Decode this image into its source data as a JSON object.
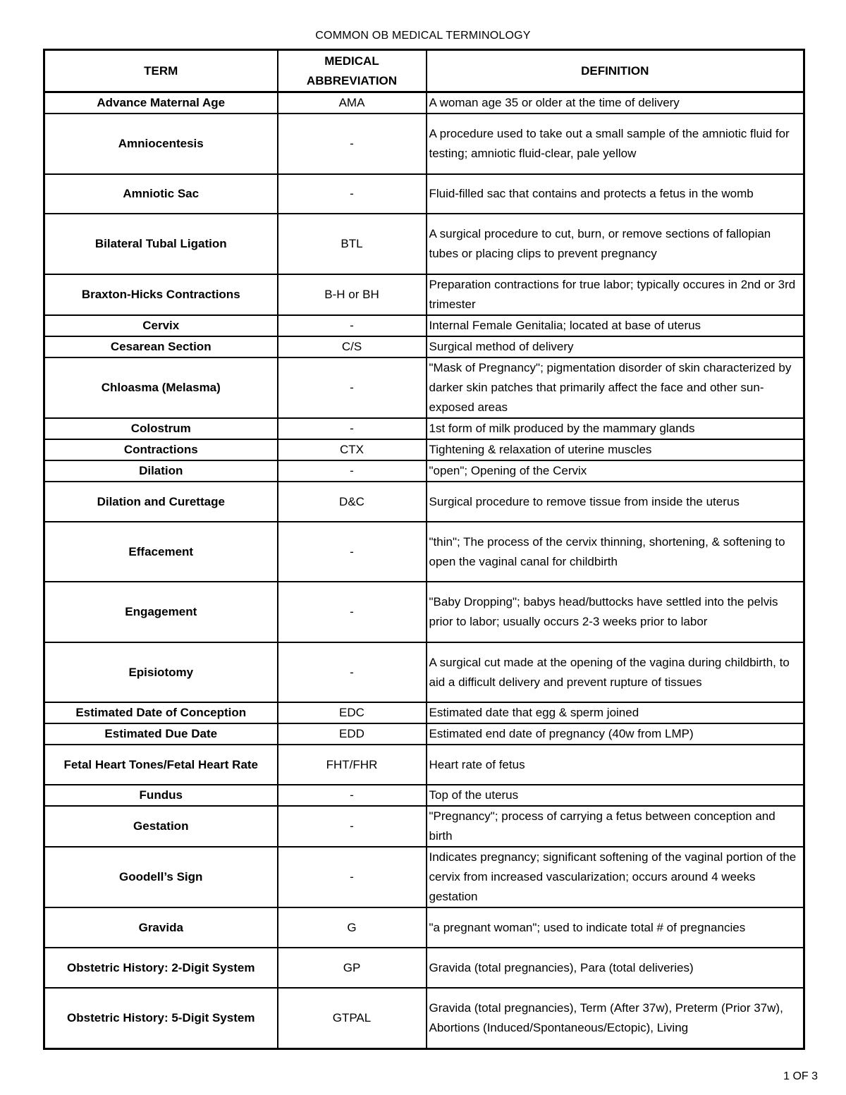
{
  "title": "COMMON OB MEDICAL TERMINOLOGY",
  "headers": {
    "term": "TERM",
    "abbreviation_line1": "MEDICAL",
    "abbreviation_line2": "ABBREVIATION",
    "definition": "DEFINITION"
  },
  "rows": [
    {
      "term": "Advance Maternal Age",
      "abbr": "AMA",
      "def": "A woman age 35 or older at the time of delivery"
    },
    {
      "term": "Amniocentesis",
      "abbr": "-",
      "def": "A procedure used to take out a small sample of the amniotic fluid for testing; amniotic fluid-clear, pale yellow"
    },
    {
      "term": "Amniotic Sac",
      "abbr": "-",
      "def": "Fluid-filled sac that contains and protects a fetus in the womb"
    },
    {
      "term": "Bilateral Tubal Ligation",
      "abbr": "BTL",
      "def": "A surgical procedure to cut, burn, or remove sections of fallopian tubes or placing clips to prevent pregnancy"
    },
    {
      "term": "Braxton-Hicks Contractions",
      "abbr": "B-H or BH",
      "def": "Preparation contractions for true labor; typically occures in 2nd or 3rd trimester"
    },
    {
      "term": "Cervix",
      "abbr": "-",
      "def": "Internal Female Genitalia; located at base of uterus"
    },
    {
      "term": "Cesarean Section",
      "abbr": "C/S",
      "def": "Surgical method of delivery"
    },
    {
      "term": "Chloasma (Melasma)",
      "abbr": "-",
      "def": "\"Mask of Pregnancy\"; pigmentation disorder of skin characterized by darker skin patches that primarily affect the face and other sun-exposed areas"
    },
    {
      "term": "Colostrum",
      "abbr": "-",
      "def": "1st form of milk produced by the mammary glands"
    },
    {
      "term": "Contractions",
      "abbr": "CTX",
      "def": "Tightening & relaxation of uterine muscles"
    },
    {
      "term": "Dilation",
      "abbr": "-",
      "def": "\"open\"; Opening of the Cervix"
    },
    {
      "term": "Dilation and Curettage",
      "abbr": "D&C",
      "def": "Surgical procedure to remove tissue from inside the uterus"
    },
    {
      "term": "Effacement",
      "abbr": "-",
      "def": "\"thin\"; The process of the cervix thinning, shortening, & softening to open the vaginal canal for childbirth"
    },
    {
      "term": "Engagement",
      "abbr": "-",
      "def": "\"Baby Dropping\"; babys head/buttocks have settled into the pelvis prior to labor; usually occurs 2-3 weeks prior to labor"
    },
    {
      "term": "Episiotomy",
      "abbr": "-",
      "def": "A surgical cut made at the opening of the vagina during childbirth, to aid a difficult delivery and prevent rupture of tissues"
    },
    {
      "term": "Estimated Date of Conception",
      "abbr": "EDC",
      "def": "Estimated date that egg & sperm joined"
    },
    {
      "term": "Estimated Due Date",
      "abbr": "EDD",
      "def": "Estimated end date of pregnancy (40w from LMP)"
    },
    {
      "term": "Fetal Heart Tones/Fetal Heart Rate",
      "abbr": "FHT/FHR",
      "def": "Heart rate of fetus"
    },
    {
      "term": "Fundus",
      "abbr": "-",
      "def": "Top of the uterus"
    },
    {
      "term": "Gestation",
      "abbr": "-",
      "def": "\"Pregnancy\"; process of carrying a fetus between conception and birth"
    },
    {
      "term": "Goodell’s Sign",
      "abbr": "-",
      "def": "Indicates pregnancy; significant softening of the vaginal portion of the cervix from increased vascularization; occurs around 4 weeks gestation"
    },
    {
      "term": "Gravida",
      "abbr": "G",
      "def": "\"a pregnant woman\"; used to indicate total # of pregnancies"
    },
    {
      "term": "Obstetric History: 2-Digit System",
      "abbr": "GP",
      "def": "Gravida (total pregnancies), Para (total deliveries)"
    },
    {
      "term": "Obstetric History: 5-Digit System",
      "abbr": "GTPAL",
      "def": "Gravida (total pregnancies), Term (After 37w), Preterm (Prior 37w), Abortions (Induced/Spontaneous/Ectopic), Living"
    }
  ],
  "page_number": "1 OF 3"
}
